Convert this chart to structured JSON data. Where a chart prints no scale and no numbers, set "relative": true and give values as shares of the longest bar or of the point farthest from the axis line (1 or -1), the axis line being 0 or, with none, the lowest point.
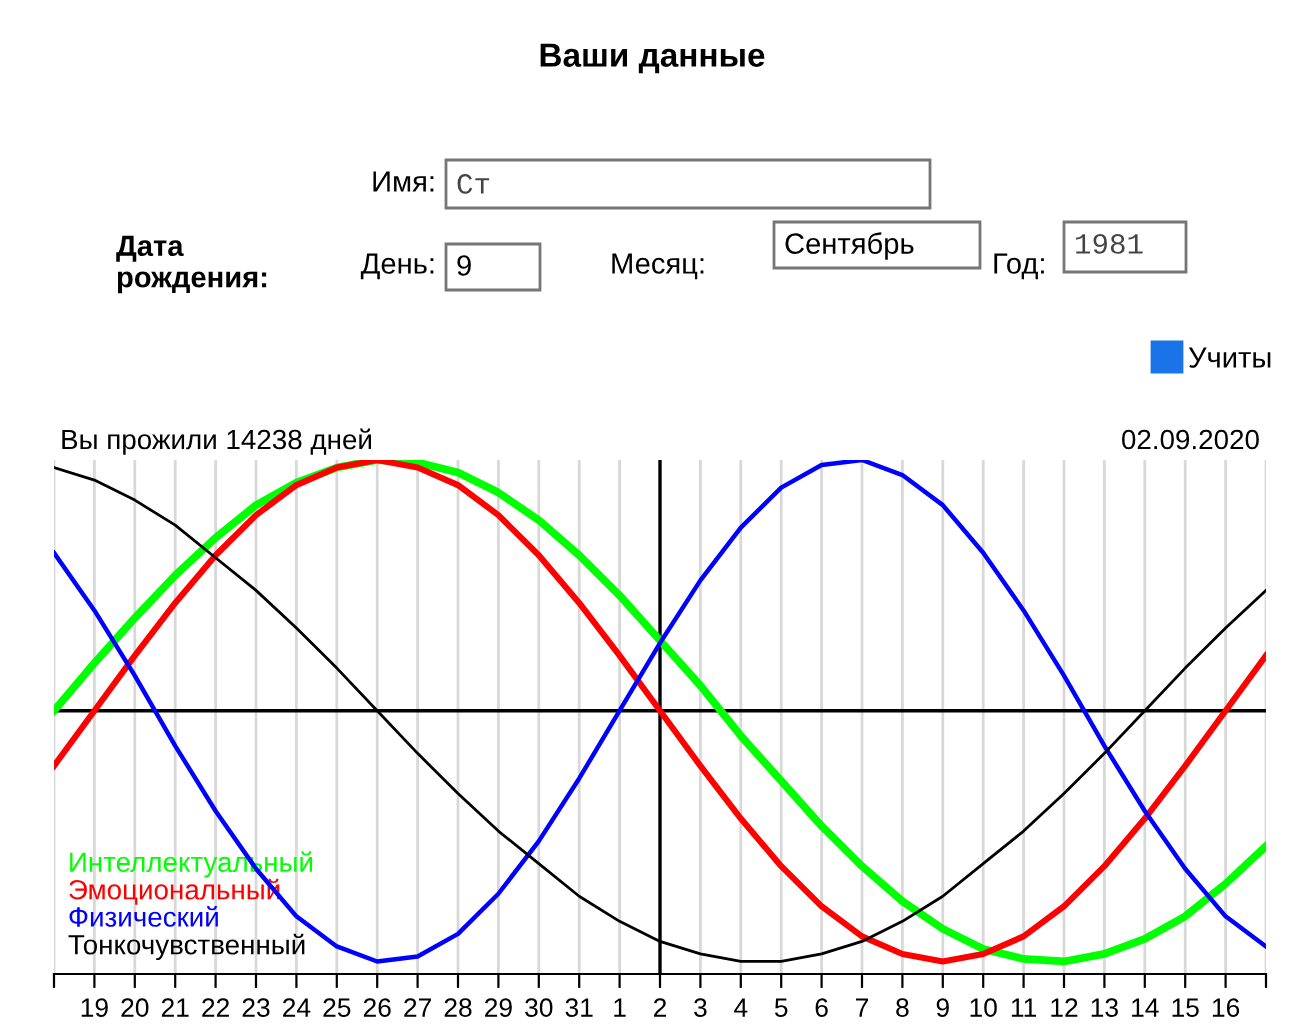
{
  "chart_data": {
    "type": "line",
    "title": "Ваши данные",
    "categories": [
      null,
      "19",
      "20",
      "21",
      "22",
      "23",
      "24",
      "25",
      "26",
      "27",
      "28",
      "29",
      "30",
      "31",
      "1",
      "2",
      "3",
      "4",
      "5",
      "6",
      "7",
      "8",
      "9",
      "10",
      "11",
      "12",
      "13",
      "14",
      "15",
      "16",
      null
    ],
    "relative": true,
    "series": [
      {
        "name": "Интеллектуальный",
        "color": "#00ff00",
        "values": [
          0,
          0.19,
          0.37,
          0.54,
          0.69,
          0.82,
          0.91,
          0.97,
          1.0,
          0.99,
          0.95,
          0.87,
          0.76,
          0.62,
          0.46,
          0.28,
          0.1,
          -0.1,
          -0.28,
          -0.46,
          -0.62,
          -0.76,
          -0.87,
          -0.95,
          -0.99,
          -1.0,
          -0.97,
          -0.91,
          -0.82,
          -0.69,
          -0.54
        ]
      },
      {
        "name": "Эмоциональный",
        "color": "#ff0000",
        "values": [
          -0.22,
          0,
          0.22,
          0.43,
          0.62,
          0.78,
          0.9,
          0.97,
          1.0,
          0.97,
          0.9,
          0.78,
          0.62,
          0.43,
          0.22,
          0,
          -0.22,
          -0.43,
          -0.62,
          -0.78,
          -0.9,
          -0.97,
          -1.0,
          -0.97,
          -0.9,
          -0.78,
          -0.62,
          -0.43,
          -0.22,
          0,
          0.22
        ]
      },
      {
        "name": "Физический",
        "color": "#0000ff",
        "values": [
          0.63,
          0.4,
          0.14,
          -0.14,
          -0.4,
          -0.63,
          -0.82,
          -0.94,
          -1.0,
          -0.98,
          -0.89,
          -0.73,
          -0.52,
          -0.27,
          0,
          0.27,
          0.52,
          0.73,
          0.89,
          0.98,
          1.0,
          0.94,
          0.82,
          0.63,
          0.4,
          0.14,
          -0.14,
          -0.4,
          -0.63,
          -0.82,
          -0.94
        ]
      },
      {
        "name": "Тонкочувственный",
        "color": "#000000",
        "values": [
          0.97,
          0.92,
          0.84,
          0.74,
          0.61,
          0.48,
          0.33,
          0.17,
          0,
          -0.17,
          -0.33,
          -0.48,
          -0.61,
          -0.74,
          -0.84,
          -0.92,
          -0.97,
          -1.0,
          -1.0,
          -0.97,
          -0.92,
          -0.84,
          -0.74,
          -0.61,
          -0.48,
          -0.33,
          -0.17,
          0,
          0.17,
          0.33,
          0.48
        ]
      }
    ],
    "ref_lines": [
      {
        "axis": "x",
        "value": "2",
        "color": "#000000"
      },
      {
        "axis": "y",
        "value": 0,
        "color": "#000000"
      }
    ],
    "grid": "x",
    "legend": "bottom left",
    "marker": "none",
    "line_style": "solid",
    "annotations": [
      "Вы прожили 14238 дней",
      "02.09.2020",
      "Имя:",
      "Ст",
      "Дата\nрождения:",
      "День:",
      "9",
      "Месяц:",
      "Сентябрь",
      "Год:",
      "1981",
      "Учиты"
    ]
  }
}
